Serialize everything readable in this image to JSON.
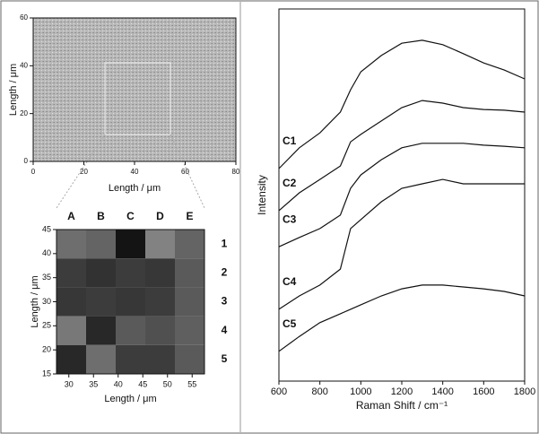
{
  "chart_data": [
    {
      "type": "image",
      "xlabel": "Length / μm",
      "ylabel": "Length / μm",
      "xlim": [
        0,
        80
      ],
      "ylim": [
        0,
        60
      ],
      "xticks": [
        0,
        20,
        40,
        60,
        80
      ],
      "yticks": [
        0,
        20,
        40,
        60
      ]
    },
    {
      "type": "heatmap",
      "xlabel": "Length / μm",
      "ylabel": "Length / μm",
      "xlim": [
        27.5,
        57.5
      ],
      "ylim": [
        15,
        45
      ],
      "xticks": [
        30,
        35,
        40,
        45,
        50,
        55
      ],
      "yticks": [
        15,
        20,
        25,
        30,
        35,
        40,
        45
      ],
      "columns": [
        "A",
        "B",
        "C",
        "D",
        "E"
      ],
      "rows": [
        "1",
        "2",
        "3",
        "4",
        "5"
      ],
      "values": [
        [
          110,
          100,
          20,
          130,
          100
        ],
        [
          60,
          50,
          60,
          55,
          90
        ],
        [
          55,
          60,
          55,
          60,
          90
        ],
        [
          120,
          40,
          90,
          80,
          95
        ],
        [
          40,
          110,
          60,
          60,
          90
        ]
      ]
    },
    {
      "type": "line",
      "xlabel": "Raman Shift / cm⁻¹",
      "ylabel": "Intensity",
      "xlim": [
        600,
        1800
      ],
      "ylim": [
        0,
        100
      ],
      "xticks": [
        600,
        800,
        1000,
        1200,
        1400,
        1600,
        1800
      ],
      "x": [
        600,
        700,
        800,
        900,
        950,
        1000,
        1100,
        1200,
        1300,
        1400,
        1500,
        1600,
        1700,
        1800
      ],
      "series": [
        {
          "name": "C1",
          "color": "#111111",
          "values": [
            57.1,
            62.7,
            66.7,
            72.3,
            78.3,
            83.1,
            87.5,
            90.8,
            91.6,
            90.4,
            88.0,
            85.5,
            83.6,
            81.2
          ]
        },
        {
          "name": "C2",
          "color": "#111111",
          "values": [
            45.8,
            50.6,
            54.2,
            57.8,
            64.3,
            66.3,
            69.9,
            73.5,
            75.4,
            74.7,
            73.5,
            73.0,
            72.8,
            72.3
          ]
        },
        {
          "name": "C3",
          "color": "#111111",
          "values": [
            36.1,
            38.6,
            41.0,
            44.6,
            51.8,
            55.4,
            59.5,
            62.7,
            63.9,
            63.9,
            63.9,
            63.4,
            63.1,
            62.7
          ]
        },
        {
          "name": "C4",
          "color": "#111111",
          "values": [
            19.3,
            22.9,
            25.8,
            30.1,
            41.0,
            43.4,
            48.2,
            51.8,
            53.0,
            54.2,
            53.0,
            53.0,
            53.0,
            53.0
          ]
        },
        {
          "name": "C5",
          "color": "#111111",
          "values": [
            8.0,
            12.0,
            15.7,
            18.1,
            19.3,
            20.5,
            22.9,
            24.8,
            25.8,
            25.8,
            25.3,
            24.8,
            24.1,
            22.9
          ]
        }
      ]
    }
  ]
}
